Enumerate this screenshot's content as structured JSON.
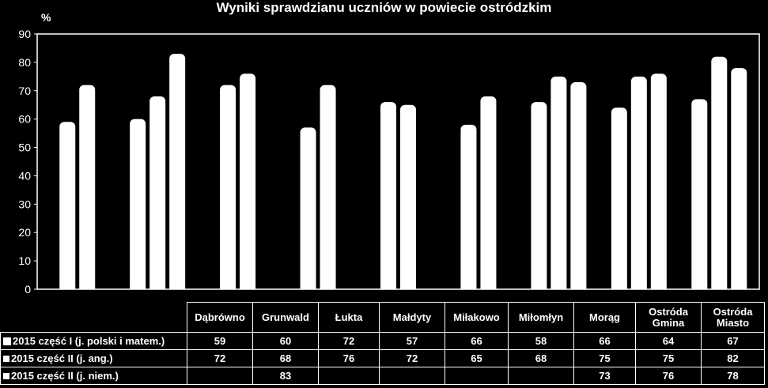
{
  "chart_data": {
    "type": "bar",
    "title": "Wyniki sprawdzianu uczniów  w  powiecie ostródzkim",
    "ylabel": "%",
    "ylim": [
      0,
      90
    ],
    "yticks": [
      "0",
      "10",
      "20",
      "30",
      "40",
      "50",
      "60",
      "70",
      "80",
      "90"
    ],
    "categories": [
      "Dąbrówno",
      "Grunwald",
      "Łukta",
      "Małdyty",
      "Miłakowo",
      "Miłomłyn",
      "Morąg",
      "Ostróda Gmina",
      "Ostróda Miasto"
    ],
    "series": [
      {
        "name": "2015 część I (j. polski i matem.)",
        "values": [
          59,
          60,
          72,
          57,
          66,
          58,
          66,
          64,
          67
        ]
      },
      {
        "name": "2015 część II (j. ang.)",
        "values": [
          72,
          68,
          76,
          72,
          65,
          68,
          75,
          75,
          82
        ]
      },
      {
        "name": "2015 część II (j. niem.)",
        "values": [
          null,
          83,
          null,
          null,
          null,
          null,
          73,
          76,
          78
        ]
      }
    ],
    "bar_color": "#ffffff",
    "background": "#000000",
    "legend": "data-table"
  },
  "table": {
    "rows": [
      {
        "label": "2015 część I (j. polski i matem.)",
        "cells": [
          "59",
          "60",
          "72",
          "57",
          "66",
          "58",
          "66",
          "64",
          "67"
        ]
      },
      {
        "label": "2015 część II (j. ang.)",
        "cells": [
          "72",
          "68",
          "76",
          "72",
          "65",
          "68",
          "75",
          "75",
          "82"
        ]
      },
      {
        "label": "2015 część II (j. niem.)",
        "cells": [
          "",
          "83",
          "",
          "",
          "",
          "",
          "73",
          "76",
          "78"
        ]
      }
    ]
  }
}
